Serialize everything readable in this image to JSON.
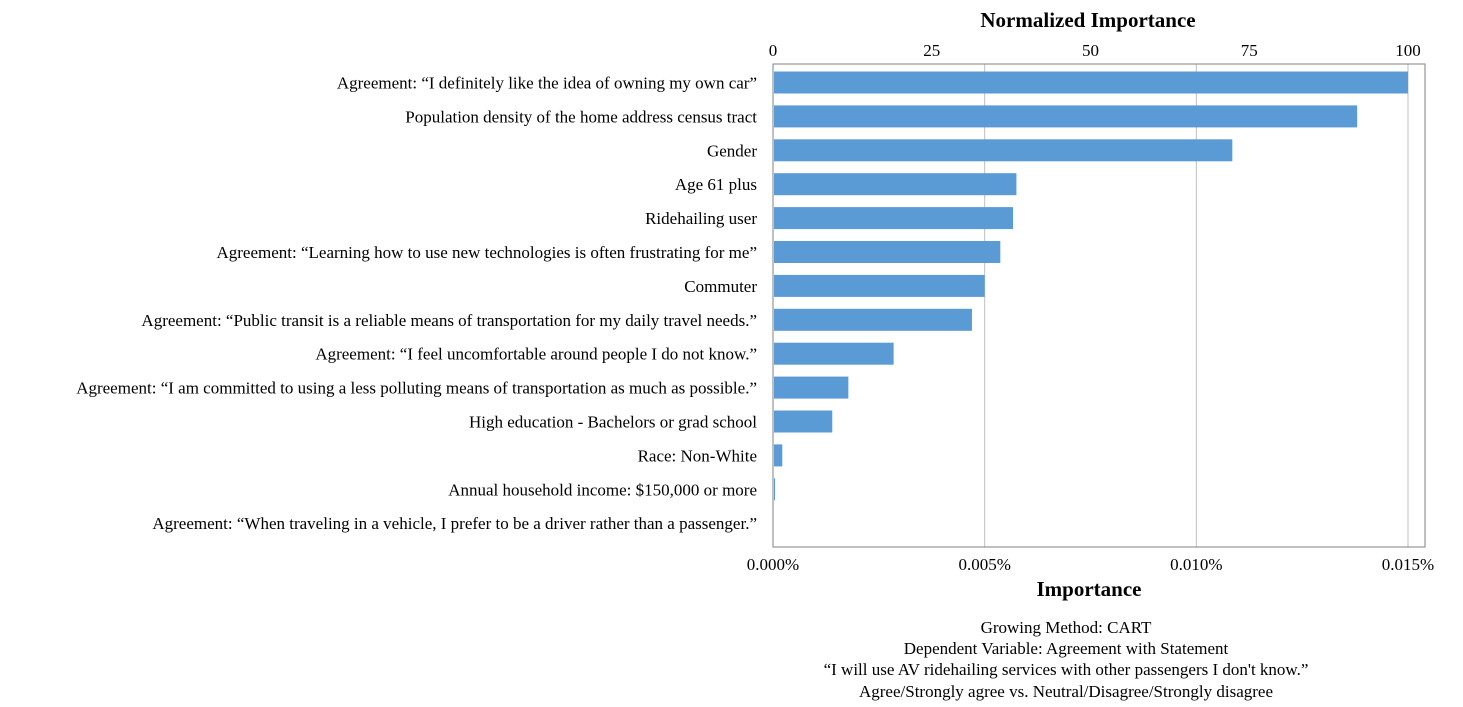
{
  "chart_data": {
    "type": "bar",
    "orientation": "horizontal",
    "top_axis_title": "Normalized Importance",
    "bottom_axis_title": "Importance",
    "top_ticks": [
      "0",
      "25",
      "50",
      "75",
      "100"
    ],
    "bottom_ticks": [
      "0.000%",
      "0.005%",
      "0.010%",
      "0.015%"
    ],
    "xlim": [
      0,
      0.015
    ],
    "normalized_lim": [
      0,
      100
    ],
    "grid": true,
    "categories": [
      "Agreement: “I definitely like the idea of owning my own car”",
      "Population density of the home address census tract",
      "Gender",
      "Age 61 plus",
      "Ridehailing user",
      "Agreement: “Learning how to use new technologies is often frustrating for me”",
      "Commuter",
      "Agreement: “Public transit is a reliable means of transportation for my daily travel needs.”",
      "Agreement: “I feel uncomfortable around people I do not know.”",
      "Agreement: “I am committed to using a less polluting means of transportation as much as possible.”",
      "High education - Bachelors or grad school",
      "Race: Non-White",
      "Annual household income: $150,000 or more",
      "Agreement: “When traveling in a vehicle, I prefer to be a driver rather than a passenger.”"
    ],
    "values": [
      0.015,
      0.0138,
      0.01085,
      0.00575,
      0.00567,
      0.00537,
      0.005,
      0.0047,
      0.00285,
      0.00178,
      0.0014,
      0.00022,
      4e-05,
      0.0
    ],
    "notes": [
      "Growing Method: CART",
      "Dependent Variable: Agreement with Statement",
      "“I will use AV ridehailing services with other passengers I don't know.”",
      "Agree/Strongly agree vs. Neutral/Disagree/Strongly disagree"
    ]
  }
}
